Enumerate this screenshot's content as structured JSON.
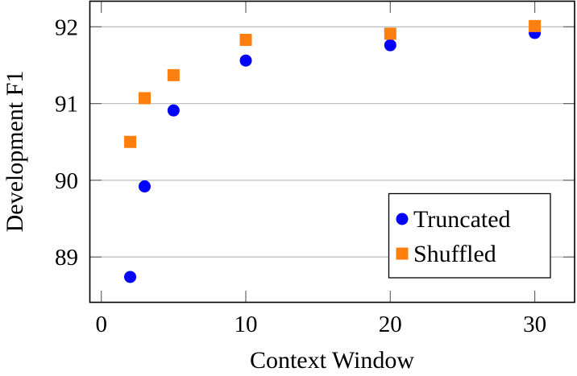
{
  "chart_data": {
    "type": "scatter",
    "title": "",
    "xlabel": "Context Window",
    "ylabel": "Development F1",
    "x": [
      2,
      3,
      5,
      10,
      20,
      30
    ],
    "series": [
      {
        "name": "Truncated",
        "marker": "circle",
        "color": "#0000ff",
        "values": [
          88.74,
          89.92,
          90.91,
          91.56,
          91.76,
          91.92
        ]
      },
      {
        "name": "Shuffled",
        "marker": "square",
        "color": "#ff7f0e",
        "values": [
          90.5,
          91.07,
          91.37,
          91.83,
          91.91,
          92.01
        ]
      }
    ],
    "xticks": [
      0,
      10,
      20,
      30
    ],
    "yticks": [
      89,
      90,
      91,
      92
    ],
    "xlim": [
      -0.75,
      32.85
    ],
    "ylim": [
      88.4,
      92.33
    ],
    "grid": {
      "horizontal": true,
      "vertical": false
    },
    "legend": {
      "position": "lower right",
      "entries": [
        "Truncated",
        "Shuffled"
      ]
    }
  },
  "labels": {
    "xlabel": "Context Window",
    "ylabel": "Development F1",
    "legend_truncated": "Truncated",
    "legend_shuffled": "Shuffled"
  }
}
